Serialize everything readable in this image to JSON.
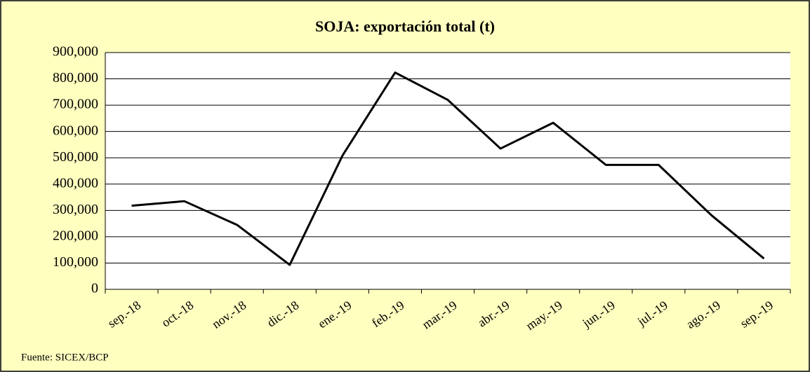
{
  "chart_data": {
    "type": "line",
    "title": "SOJA: exportación total (t)",
    "source": "Fuente: SICEX/BCP",
    "categories": [
      "sep.-18",
      "oct.-18",
      "nov.-18",
      "dic.-18",
      "ene.-19",
      "feb.-19",
      "mar.-19",
      "abr.-19",
      "may.-19",
      "jun.-19",
      "jul.-19",
      "ago.-19",
      "sep.-19"
    ],
    "series": [
      {
        "name": "SOJA",
        "color": "#000000",
        "values": [
          318000,
          335000,
          245000,
          93000,
          508000,
          824000,
          720000,
          535000,
          633000,
          473000,
          473000,
          282000,
          117000
        ]
      }
    ],
    "ylim": [
      0,
      900000
    ],
    "yticks": [
      0,
      {
        "value": 100000,
        "label": "100,000"
      },
      {
        "value": 200000,
        "label": "200,000"
      },
      {
        "value": 300000,
        "label": "300,000"
      },
      {
        "value": 400000,
        "label": "400,000"
      },
      {
        "value": 500000,
        "label": "500,000"
      },
      {
        "value": 600000,
        "label": "600,000"
      },
      {
        "value": 700000,
        "label": "700,000"
      },
      {
        "value": 800000,
        "label": "800,000"
      },
      {
        "value": 900000,
        "label": "900,000"
      }
    ],
    "grid": true
  }
}
